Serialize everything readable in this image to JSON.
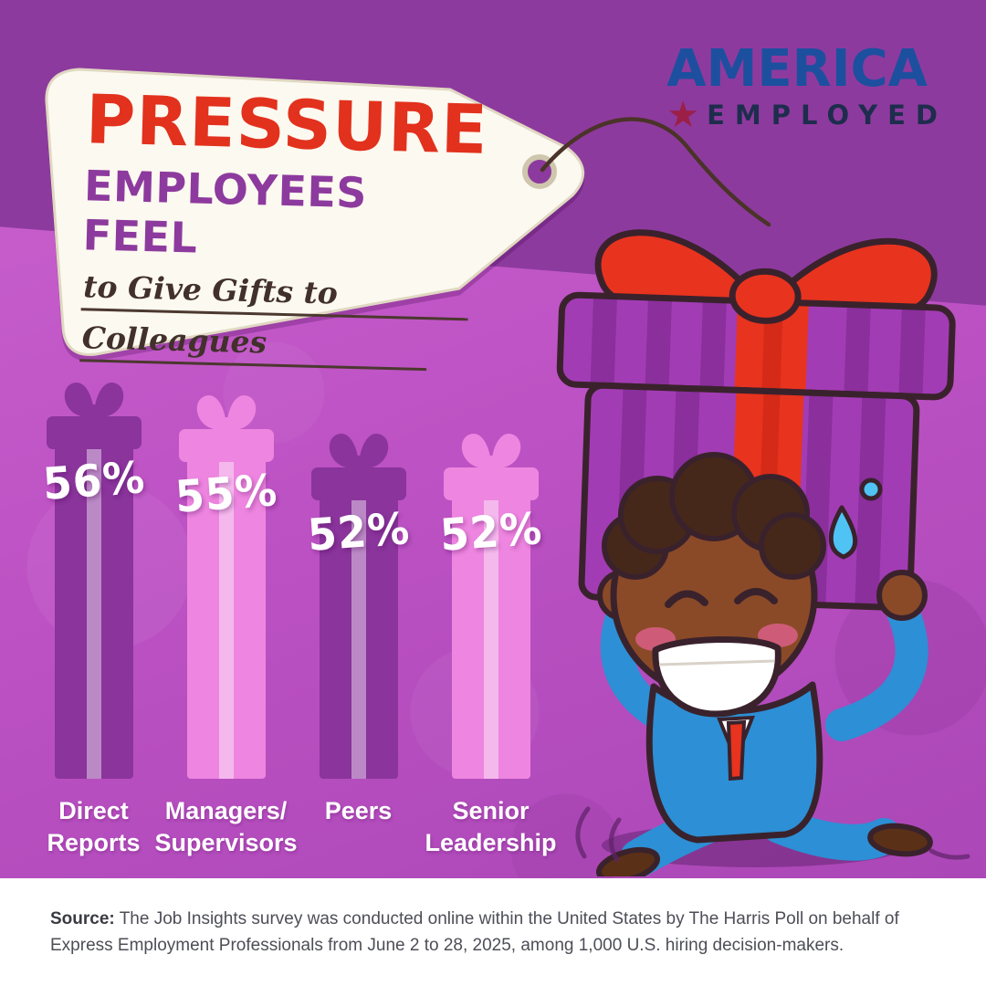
{
  "palette": {
    "bg_dark": "#8d3a9e",
    "bg_light": "#c55fc9",
    "bar_dark": "#8a349c",
    "bar_pink": "#ee85e0",
    "accent_red": "#e2311d",
    "logo_blue": "#1d4f9f",
    "logo_navy": "#1e2d4d",
    "star_red": "#9b1f47"
  },
  "tag": {
    "title_line1": "PRESSURE",
    "title_line2": "EMPLOYEES FEEL",
    "subtitle_line1": "to Give Gifts to",
    "subtitle_line2": "Colleagues"
  },
  "logo": {
    "word1": "AMERICA",
    "word2": "EMPLOYED",
    "star_glyph": "★"
  },
  "chart_data": {
    "type": "bar",
    "title": "Pressure Employees Feel to Give Gifts to Colleagues",
    "categories": [
      "Direct Reports",
      "Managers/Supervisors",
      "Peers",
      "Senior Leadership"
    ],
    "categories_display": [
      "Direct\nReports",
      "Managers/\nSupervisors",
      "Peers",
      "Senior\nLeadership"
    ],
    "values": [
      56,
      55,
      52,
      52
    ],
    "value_labels": [
      "56%",
      "55%",
      "52%",
      "52%"
    ],
    "unit": "%",
    "ylim": [
      0,
      60
    ],
    "colors": [
      "#8a349c",
      "#ee85e0",
      "#8a349c",
      "#ee85e0"
    ],
    "legend": "none",
    "grid": false
  },
  "source": {
    "label": "Source:",
    "text": "The Job Insights survey was conducted online within the United States by The Harris Poll on behalf of Express Employment Professionals from June 2 to 28, 2025, among 1,000 U.S. hiring decision-makers."
  }
}
